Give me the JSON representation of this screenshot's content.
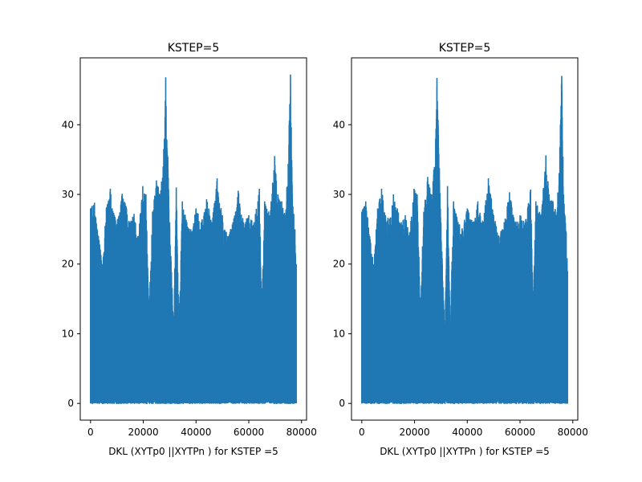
{
  "chart_data": [
    {
      "type": "line",
      "title": "KSTEP=5",
      "xlabel": "DKL (XYTp0 ||XYTPn ) for KSTEP =5",
      "ylabel": "",
      "xlim": [
        -3900,
        81900
      ],
      "ylim": [
        -2.4,
        49.6
      ],
      "xticks": [
        0,
        20000,
        40000,
        60000,
        80000
      ],
      "xtick_labels": [
        "0",
        "20000",
        "40000",
        "60000",
        "80000"
      ],
      "yticks": [
        0,
        10,
        20,
        30,
        40
      ],
      "ytick_labels": [
        "0",
        "10",
        "20",
        "30",
        "40"
      ],
      "grid": false,
      "color": "#1f77b4",
      "series": [
        {
          "x_range": [
            0,
            78000
          ],
          "y_min": 0,
          "peaks": [
            [
              0,
              28
            ],
            [
              1500,
              28.8
            ],
            [
              3000,
              24
            ],
            [
              4500,
              20
            ],
            [
              6000,
              28
            ],
            [
              7500,
              30.8
            ],
            [
              9000,
              27
            ],
            [
              10500,
              26.5
            ],
            [
              12000,
              30.1
            ],
            [
              13500,
              28.2
            ],
            [
              15000,
              26
            ],
            [
              16500,
              27.2
            ],
            [
              18000,
              24
            ],
            [
              19800,
              31.2
            ],
            [
              21000,
              30
            ],
            [
              22200,
              13.5
            ],
            [
              23500,
              27.5
            ],
            [
              25000,
              32
            ],
            [
              26500,
              30
            ],
            [
              28000,
              38
            ],
            [
              28500,
              46.8
            ],
            [
              30000,
              26
            ],
            [
              31500,
              10.7
            ],
            [
              32500,
              31
            ],
            [
              33500,
              10.8
            ],
            [
              34800,
              29
            ],
            [
              36500,
              26
            ],
            [
              38000,
              25
            ],
            [
              40000,
              28
            ],
            [
              42000,
              26
            ],
            [
              44000,
              29.3
            ],
            [
              46000,
              26
            ],
            [
              48000,
              32.3
            ],
            [
              50000,
              27
            ],
            [
              52000,
              24
            ],
            [
              54000,
              26
            ],
            [
              56000,
              30.5
            ],
            [
              58000,
              26
            ],
            [
              60000,
              27
            ],
            [
              62000,
              26
            ],
            [
              64000,
              30.8
            ],
            [
              65000,
              14.5
            ],
            [
              66000,
              29
            ],
            [
              68000,
              27
            ],
            [
              69800,
              35.5
            ],
            [
              71000,
              30
            ],
            [
              72500,
              29
            ],
            [
              74000,
              27
            ],
            [
              75300,
              40
            ],
            [
              75800,
              47.2
            ],
            [
              76500,
              30
            ],
            [
              77500,
              25
            ],
            [
              78000,
              20
            ]
          ]
        }
      ]
    },
    {
      "type": "line",
      "title": "KSTEP=5",
      "xlabel": "DKL (XYTp0 ||XYTPn ) for KSTEP =5",
      "ylabel": "",
      "xlim": [
        -3900,
        81900
      ],
      "ylim": [
        -2.4,
        49.6
      ],
      "xticks": [
        0,
        20000,
        40000,
        60000,
        80000
      ],
      "xtick_labels": [
        "0",
        "20000",
        "40000",
        "60000",
        "80000"
      ],
      "yticks": [
        0,
        10,
        20,
        30,
        40
      ],
      "ytick_labels": [
        "0",
        "10",
        "20",
        "30",
        "40"
      ],
      "grid": false,
      "color": "#1f77b4",
      "series": [
        {
          "x_range": [
            0,
            78000
          ],
          "y_min": 0,
          "peaks": [
            [
              0,
              27.5
            ],
            [
              1500,
              29
            ],
            [
              3000,
              24
            ],
            [
              4500,
              20
            ],
            [
              6000,
              28
            ],
            [
              7500,
              30.8
            ],
            [
              9000,
              27
            ],
            [
              10500,
              26.5
            ],
            [
              12000,
              30
            ],
            [
              13500,
              28
            ],
            [
              15000,
              26
            ],
            [
              16500,
              27
            ],
            [
              18000,
              24
            ],
            [
              19800,
              30.8
            ],
            [
              21000,
              30
            ],
            [
              22200,
              14.2
            ],
            [
              23500,
              27.5
            ],
            [
              25000,
              32.5
            ],
            [
              26500,
              30
            ],
            [
              28000,
              38
            ],
            [
              28500,
              46.7
            ],
            [
              30000,
              26
            ],
            [
              31500,
              9.8
            ],
            [
              32500,
              31.2
            ],
            [
              33500,
              10.5
            ],
            [
              34800,
              29
            ],
            [
              36500,
              26
            ],
            [
              38000,
              25
            ],
            [
              40000,
              28
            ],
            [
              42000,
              26
            ],
            [
              44000,
              29
            ],
            [
              46000,
              26
            ],
            [
              48000,
              32.3
            ],
            [
              50000,
              27
            ],
            [
              52000,
              24
            ],
            [
              54000,
              26
            ],
            [
              56000,
              30.3
            ],
            [
              58000,
              26
            ],
            [
              60000,
              27
            ],
            [
              62000,
              26
            ],
            [
              64000,
              30.7
            ],
            [
              65000,
              14.5
            ],
            [
              66000,
              29
            ],
            [
              68000,
              27
            ],
            [
              69800,
              35.6
            ],
            [
              71000,
              30
            ],
            [
              72500,
              29
            ],
            [
              74000,
              27
            ],
            [
              75300,
              40
            ],
            [
              75800,
              47
            ],
            [
              76500,
              30
            ],
            [
              77500,
              24.5
            ],
            [
              78000,
              19
            ]
          ]
        }
      ]
    }
  ]
}
